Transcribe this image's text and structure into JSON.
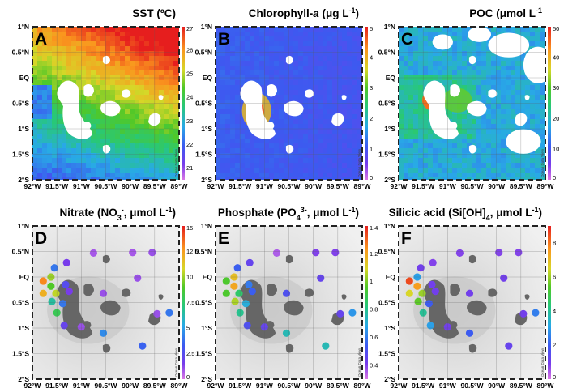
{
  "lat_labels": [
    "1°N",
    "0.5°N",
    "EQ",
    "0.5°S",
    "1°S",
    "1.5°S",
    "2°S"
  ],
  "lon_labels": [
    "92°W",
    "91.5°W",
    "91°W",
    "90.5°W",
    "90°W",
    "89.5°W",
    "89°W"
  ],
  "watermark": "Ocean Data View",
  "panels": [
    {
      "id": "sst",
      "letter": "A",
      "title_parts": [
        {
          "text": "SST (ºC)"
        }
      ],
      "map_style": "sst",
      "colorbar_ticks": [
        "27",
        "26",
        "25",
        "24",
        "23",
        "22",
        "21"
      ],
      "colorbar_range": [
        20.5,
        27
      ]
    },
    {
      "id": "chlorophyll",
      "letter": "B",
      "title_parts": [
        {
          "text": "Chlorophyll-"
        },
        {
          "text": "a",
          "italic": true
        },
        {
          "text": " (μg L"
        },
        {
          "text": "-1",
          "sup": true
        },
        {
          "text": ")"
        }
      ],
      "map_style": "chl",
      "colorbar_ticks": [
        "5",
        "4",
        "3",
        "2",
        "1",
        "0"
      ],
      "colorbar_range": [
        0,
        5
      ]
    },
    {
      "id": "poc",
      "letter": "C",
      "title_parts": [
        {
          "text": "POC (μmol L"
        },
        {
          "text": "-1",
          "sup": true
        }
      ],
      "map_style": "poc",
      "colorbar_ticks": [
        "50",
        "40",
        "30",
        "20",
        "10",
        "0"
      ],
      "colorbar_range": [
        0,
        50
      ]
    },
    {
      "id": "nitrate",
      "letter": "D",
      "title_parts": [
        {
          "text": "Nitrate (NO"
        },
        {
          "text": "3",
          "sub": true
        },
        {
          "text": "-",
          "sup": true
        },
        {
          "text": ", μmol L"
        },
        {
          "text": "-1",
          "sup": true
        },
        {
          "text": ")"
        }
      ],
      "map_style": "station",
      "colorbar_ticks": [
        "15",
        "12.5",
        "10",
        "7.5",
        "5",
        "2.5",
        "0"
      ],
      "colorbar_range": [
        0,
        15
      ]
    },
    {
      "id": "phosphate",
      "letter": "E",
      "title_parts": [
        {
          "text": "Phosphate (PO"
        },
        {
          "text": "4",
          "sub": true
        },
        {
          "text": "3-",
          "sup": true
        },
        {
          "text": ", μmol L"
        },
        {
          "text": "-1",
          "sup": true
        },
        {
          "text": ")"
        }
      ],
      "map_style": "station",
      "colorbar_ticks": [
        "1.4",
        "1.2",
        "1",
        "0.8",
        "0.6",
        "0.4"
      ],
      "colorbar_range": [
        0.3,
        1.4
      ]
    },
    {
      "id": "silicic",
      "letter": "F",
      "title_parts": [
        {
          "text": "Silicic acid (Si[OH]"
        },
        {
          "text": "4",
          "sub": true
        },
        {
          "text": ", μmol L"
        },
        {
          "text": "-1",
          "sup": true
        },
        {
          "text": ")"
        }
      ],
      "map_style": "station",
      "colorbar_ticks": [
        "8",
        "6",
        "4",
        "2",
        "0"
      ],
      "colorbar_range": [
        0,
        9
      ]
    }
  ],
  "station_positions": [
    {
      "lon": -91.3,
      "lat": 0.28
    },
    {
      "lon": -90.75,
      "lat": 0.47
    },
    {
      "lon": -89.95,
      "lat": 0.48
    },
    {
      "lon": -89.55,
      "lat": 0.48
    },
    {
      "lon": -91.55,
      "lat": 0.18
    },
    {
      "lon": -91.62,
      "lat": 0.0
    },
    {
      "lon": -91.78,
      "lat": -0.08
    },
    {
      "lon": -91.62,
      "lat": -0.18
    },
    {
      "lon": -91.78,
      "lat": -0.32
    },
    {
      "lon": -91.52,
      "lat": -0.32
    },
    {
      "lon": -91.6,
      "lat": -0.48
    },
    {
      "lon": -91.38,
      "lat": -0.52
    },
    {
      "lon": -91.32,
      "lat": -0.15
    },
    {
      "lon": -91.25,
      "lat": -0.28
    },
    {
      "lon": -90.55,
      "lat": -0.32
    },
    {
      "lon": -89.85,
      "lat": -0.02
    },
    {
      "lon": -89.45,
      "lat": -0.72
    },
    {
      "lon": -89.2,
      "lat": -0.7
    },
    {
      "lon": -91.35,
      "lat": -0.95
    },
    {
      "lon": -91.0,
      "lat": -0.98
    },
    {
      "lon": -90.55,
      "lat": -1.1
    },
    {
      "lon": -89.75,
      "lat": -1.35
    },
    {
      "lon": -91.5,
      "lat": -0.7
    }
  ],
  "station_values": {
    "nitrate": [
      1.5,
      0.8,
      0.8,
      1.0,
      4.0,
      10.0,
      13.0,
      9.0,
      12.0,
      10.5,
      6.5,
      4.0,
      2.5,
      1.5,
      1.0,
      1.0,
      1.0,
      4.0,
      2.0,
      1.0,
      4.5,
      3.5,
      8.0
    ],
    "phosphate": [
      0.45,
      0.35,
      0.4,
      0.4,
      0.55,
      1.15,
      0.95,
      1.2,
      0.95,
      0.85,
      1.05,
      0.7,
      0.6,
      0.55,
      0.5,
      0.45,
      0.45,
      0.65,
      0.5,
      0.45,
      0.75,
      0.75,
      0.8
    ],
    "silicic": [
      0.8,
      0.8,
      0.8,
      0.8,
      1.0,
      3.0,
      8.5,
      7.5,
      6.5,
      6.0,
      5.5,
      2.0,
      1.0,
      1.0,
      1.0,
      1.0,
      1.0,
      2.5,
      3.0,
      1.0,
      2.0,
      1.2,
      4.0
    ]
  }
}
